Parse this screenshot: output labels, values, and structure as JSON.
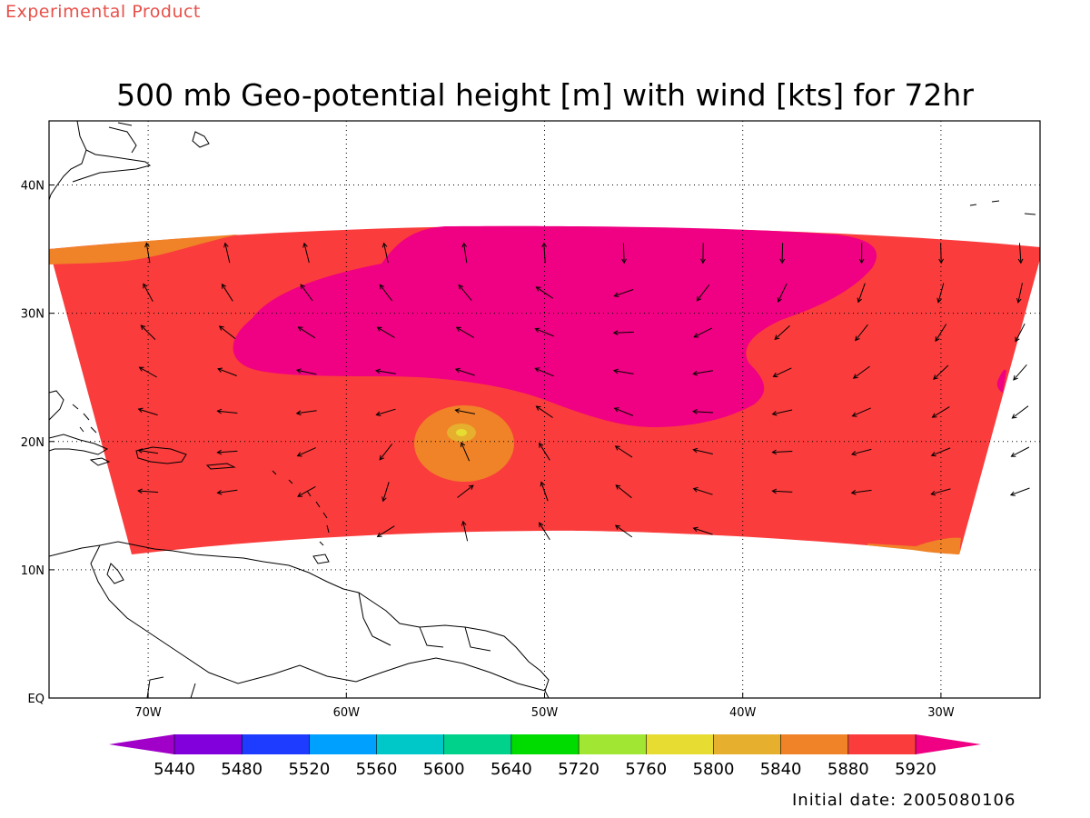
{
  "header": {
    "product_label": "Experimental Product",
    "title": "500 mb Geo-potential height [m] with wind [kts] for 72hr"
  },
  "footer": {
    "initial_date": "Initial date: 2005080106"
  },
  "map": {
    "lon_range": [
      -75,
      -25
    ],
    "lat_range": [
      0,
      45
    ],
    "lon_ticks": [
      {
        "value": -70,
        "label": "70W"
      },
      {
        "value": -60,
        "label": "60W"
      },
      {
        "value": -50,
        "label": "50W"
      },
      {
        "value": -40,
        "label": "40W"
      },
      {
        "value": -30,
        "label": "30W"
      }
    ],
    "lat_ticks": [
      {
        "value": 0,
        "label": "EQ"
      },
      {
        "value": 10,
        "label": "10N"
      },
      {
        "value": 20,
        "label": "20N"
      },
      {
        "value": 30,
        "label": "30N"
      },
      {
        "value": 40,
        "label": "40N"
      }
    ],
    "grid": "dotted"
  },
  "colorbar": {
    "labels": [
      "5440",
      "5480",
      "5520",
      "5560",
      "5600",
      "5640",
      "5720",
      "5760",
      "5800",
      "5840",
      "5880",
      "5920"
    ],
    "colors": [
      "#a000c8",
      "#8200dc",
      "#1e3cff",
      "#00a0ff",
      "#00c8c8",
      "#00d28c",
      "#00dc00",
      "#a0e632",
      "#e6dc32",
      "#e6af2d",
      "#f08228",
      "#fa3c3c",
      "#f00082"
    ],
    "extends": "both"
  },
  "field_colors": {
    "h5880": "#f08228",
    "h5920": "#fa3c3c",
    "h5960": "#f00082",
    "center_core": "#e6dc32",
    "center_inner": "#e6af2d"
  }
}
